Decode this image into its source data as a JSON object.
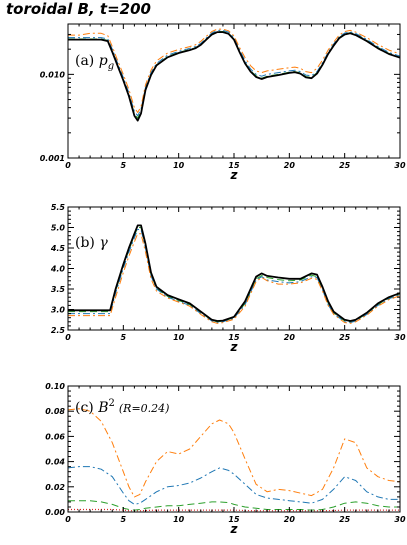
{
  "figure": {
    "title": "toroidal B, t=200"
  },
  "chart_data": [
    {
      "type": "line",
      "label": "(a) p_g",
      "label_prefix": "(a)",
      "label_symbol": "p",
      "label_sub": "g",
      "xlabel": "z",
      "xlim": [
        0,
        30
      ],
      "ylim": [
        0.001,
        0.04
      ],
      "log_y": true,
      "xticks": [
        0,
        5,
        10,
        15,
        20,
        25,
        30
      ],
      "yticks": [
        0.001,
        0.01
      ],
      "ytick_labels": [
        "0.001",
        "0.010"
      ],
      "x": [
        0,
        1,
        2,
        3,
        3.6,
        4,
        4.5,
        5,
        5.5,
        6,
        6.3,
        6.6,
        7,
        7.5,
        8,
        9,
        10,
        11,
        11.5,
        12,
        12.5,
        13,
        13.5,
        14,
        14.5,
        15,
        15.5,
        16,
        16.5,
        17,
        17.5,
        18,
        19,
        20,
        20.5,
        21,
        21.5,
        22,
        22.5,
        23,
        23.5,
        24,
        24.5,
        25,
        25.5,
        26,
        27,
        28,
        29,
        30
      ],
      "series": [
        {
          "color": "#000000",
          "dash": "solid",
          "width": 1.8,
          "values": [
            0.026,
            0.026,
            0.026,
            0.026,
            0.025,
            0.0185,
            0.0125,
            0.0085,
            0.0055,
            0.0032,
            0.0028,
            0.0034,
            0.0065,
            0.0098,
            0.0128,
            0.016,
            0.018,
            0.0195,
            0.0205,
            0.0225,
            0.026,
            0.03,
            0.032,
            0.032,
            0.0305,
            0.026,
            0.0185,
            0.0135,
            0.0108,
            0.0093,
            0.0088,
            0.0093,
            0.0098,
            0.0104,
            0.0106,
            0.0102,
            0.0092,
            0.009,
            0.0102,
            0.013,
            0.0175,
            0.022,
            0.027,
            0.03,
            0.031,
            0.0295,
            0.025,
            0.0205,
            0.0175,
            0.0158
          ]
        },
        {
          "color": "#2ca02c",
          "dash": "7,4",
          "width": 1,
          "values": [
            0.0265,
            0.0265,
            0.0265,
            0.0265,
            0.0255,
            0.019,
            0.0128,
            0.0087,
            0.0057,
            0.0034,
            0.003,
            0.0036,
            0.0067,
            0.01,
            0.013,
            0.0163,
            0.0183,
            0.0198,
            0.0208,
            0.0228,
            0.0265,
            0.0305,
            0.0325,
            0.0325,
            0.031,
            0.0265,
            0.019,
            0.0138,
            0.011,
            0.0096,
            0.009,
            0.0095,
            0.01,
            0.0106,
            0.0108,
            0.0104,
            0.0094,
            0.0092,
            0.0105,
            0.0133,
            0.0178,
            0.0225,
            0.0275,
            0.0305,
            0.0315,
            0.03,
            0.0255,
            0.021,
            0.0178,
            0.016
          ]
        },
        {
          "color": "#1f77b4",
          "dash": "7,3,2,3",
          "width": 1,
          "values": [
            0.0275,
            0.0275,
            0.0275,
            0.0275,
            0.0265,
            0.02,
            0.0135,
            0.0092,
            0.006,
            0.0036,
            0.0032,
            0.0038,
            0.007,
            0.0105,
            0.0135,
            0.017,
            0.0188,
            0.0205,
            0.0215,
            0.0235,
            0.0272,
            0.0312,
            0.0335,
            0.0335,
            0.032,
            0.0275,
            0.0198,
            0.0145,
            0.0116,
            0.01,
            0.0095,
            0.01,
            0.0105,
            0.011,
            0.0112,
            0.0108,
            0.0098,
            0.0096,
            0.0108,
            0.0137,
            0.0183,
            0.023,
            0.0282,
            0.0312,
            0.0322,
            0.0308,
            0.0262,
            0.0215,
            0.0183,
            0.0165
          ]
        },
        {
          "color": "#ff7f0e",
          "dash": "7,3,2,3",
          "width": 1,
          "values": [
            0.0295,
            0.0295,
            0.031,
            0.031,
            0.029,
            0.0215,
            0.0145,
            0.01,
            0.0066,
            0.004,
            0.0035,
            0.0041,
            0.0075,
            0.0112,
            0.0145,
            0.018,
            0.0198,
            0.0215,
            0.0225,
            0.0248,
            0.0285,
            0.0325,
            0.0348,
            0.0348,
            0.0332,
            0.0288,
            0.021,
            0.0158,
            0.0127,
            0.011,
            0.0105,
            0.011,
            0.0115,
            0.012,
            0.0122,
            0.0118,
            0.0108,
            0.0105,
            0.0118,
            0.0148,
            0.0195,
            0.0242,
            0.0295,
            0.0325,
            0.0335,
            0.032,
            0.0275,
            0.0228,
            0.0195,
            0.0175
          ]
        }
      ]
    },
    {
      "type": "line",
      "label": "(b) γ",
      "label_prefix": "(b)",
      "label_symbol": "γ",
      "xlabel": "z",
      "xlim": [
        0,
        30
      ],
      "ylim": [
        2.5,
        5.5
      ],
      "xticks": [
        0,
        5,
        10,
        15,
        20,
        25,
        30
      ],
      "yticks": [
        2.5,
        3.0,
        3.5,
        4.0,
        4.5,
        5.0,
        5.5
      ],
      "ytick_labels": [
        "2.5",
        "3.0",
        "3.5",
        "4.0",
        "4.5",
        "5.0",
        "5.5"
      ],
      "x": [
        0,
        1,
        2,
        3,
        3.8,
        4.3,
        5,
        5.5,
        6,
        6.3,
        6.6,
        7,
        7.5,
        8,
        9,
        10,
        11,
        12,
        13,
        13.5,
        14,
        15,
        16,
        17,
        17.5,
        18,
        19,
        20,
        21,
        22,
        22.5,
        23,
        23.5,
        24,
        25,
        25.5,
        26,
        27,
        28,
        29,
        30
      ],
      "series": [
        {
          "color": "#000000",
          "dash": "solid",
          "width": 1.8,
          "values": [
            2.98,
            2.98,
            2.98,
            2.98,
            2.98,
            3.5,
            4.1,
            4.5,
            4.85,
            5.05,
            5.05,
            4.6,
            3.9,
            3.55,
            3.35,
            3.25,
            3.15,
            2.95,
            2.75,
            2.72,
            2.73,
            2.82,
            3.2,
            3.8,
            3.88,
            3.82,
            3.78,
            3.75,
            3.75,
            3.88,
            3.85,
            3.55,
            3.2,
            2.95,
            2.75,
            2.72,
            2.75,
            2.92,
            3.15,
            3.3,
            3.4
          ]
        },
        {
          "color": "#2ca02c",
          "dash": "7,4",
          "width": 1,
          "values": [
            2.95,
            2.95,
            2.95,
            2.95,
            2.95,
            3.45,
            4.05,
            4.45,
            4.8,
            5.0,
            5.0,
            4.55,
            3.85,
            3.52,
            3.32,
            3.22,
            3.12,
            2.93,
            2.73,
            2.7,
            2.71,
            2.8,
            3.15,
            3.75,
            3.83,
            3.78,
            3.73,
            3.7,
            3.72,
            3.84,
            3.8,
            3.5,
            3.16,
            2.92,
            2.72,
            2.7,
            2.73,
            2.9,
            3.12,
            3.28,
            3.38
          ]
        },
        {
          "color": "#1f77b4",
          "dash": "7,3,2,3",
          "width": 1,
          "values": [
            2.9,
            2.9,
            2.9,
            2.9,
            2.9,
            3.4,
            4.0,
            4.4,
            4.75,
            4.95,
            4.95,
            4.5,
            3.82,
            3.5,
            3.3,
            3.2,
            3.1,
            2.9,
            2.72,
            2.68,
            2.7,
            2.79,
            3.12,
            3.72,
            3.8,
            3.72,
            3.68,
            3.65,
            3.68,
            3.8,
            3.78,
            3.48,
            3.12,
            2.9,
            2.7,
            2.68,
            2.72,
            2.88,
            3.1,
            3.26,
            3.36
          ]
        },
        {
          "color": "#ff7f0e",
          "dash": "7,3,2,3",
          "width": 1,
          "values": [
            2.85,
            2.85,
            2.85,
            2.85,
            2.85,
            3.3,
            3.9,
            4.3,
            4.65,
            4.85,
            4.85,
            4.4,
            3.75,
            3.45,
            3.28,
            3.18,
            3.08,
            2.88,
            2.7,
            2.66,
            2.68,
            2.76,
            3.08,
            3.68,
            3.78,
            3.7,
            3.62,
            3.62,
            3.65,
            3.76,
            3.74,
            3.45,
            3.1,
            2.88,
            2.68,
            2.66,
            2.7,
            2.86,
            3.08,
            3.24,
            3.34
          ]
        }
      ]
    },
    {
      "type": "line",
      "label": "(c) B^2 (R=0.24)",
      "label_prefix": "(c)",
      "label_symbol": "B",
      "label_sup": "2",
      "note": "(R=0.24)",
      "xlabel": "z",
      "xlim": [
        0,
        30
      ],
      "ylim": [
        0.0,
        0.1
      ],
      "xticks": [
        0,
        5,
        10,
        15,
        20,
        25,
        30
      ],
      "yticks": [
        0.0,
        0.02,
        0.04,
        0.06,
        0.08,
        0.1
      ],
      "ytick_labels": [
        "0.00",
        "0.02",
        "0.04",
        "0.06",
        "0.08",
        "0.10"
      ],
      "x": [
        0,
        1,
        2,
        3,
        4,
        5,
        5.5,
        6,
        6.5,
        7,
        8,
        9,
        10,
        11,
        12,
        13,
        13.7,
        14.5,
        15,
        16,
        17,
        18,
        19,
        20,
        21,
        22,
        23,
        24,
        25,
        26,
        27,
        28,
        29,
        30
      ],
      "series": [
        {
          "color": "#d62728",
          "dash": "1,2",
          "width": 1.2,
          "values": [
            0.002,
            0.002,
            0.002,
            0.002,
            0.002,
            0.0015,
            0.001,
            0.001,
            0.001,
            0.0012,
            0.0015,
            0.0015,
            0.0015,
            0.0015,
            0.0015,
            0.0015,
            0.0015,
            0.0015,
            0.0015,
            0.0012,
            0.001,
            0.001,
            0.001,
            0.001,
            0.001,
            0.001,
            0.001,
            0.0012,
            0.0015,
            0.0015,
            0.0015,
            0.0015,
            0.0015,
            0.0015
          ]
        },
        {
          "color": "#2ca02c",
          "dash": "7,4",
          "width": 1,
          "values": [
            0.009,
            0.009,
            0.009,
            0.008,
            0.006,
            0.003,
            0.002,
            0.0015,
            0.002,
            0.003,
            0.004,
            0.005,
            0.005,
            0.006,
            0.007,
            0.008,
            0.008,
            0.0075,
            0.006,
            0.004,
            0.003,
            0.002,
            0.002,
            0.002,
            0.002,
            0.0015,
            0.002,
            0.004,
            0.007,
            0.008,
            0.007,
            0.005,
            0.004,
            0.004
          ]
        },
        {
          "color": "#1f77b4",
          "dash": "7,3,2,3",
          "width": 1,
          "values": [
            0.035,
            0.036,
            0.036,
            0.034,
            0.028,
            0.015,
            0.009,
            0.006,
            0.007,
            0.01,
            0.016,
            0.02,
            0.021,
            0.023,
            0.027,
            0.032,
            0.035,
            0.033,
            0.03,
            0.022,
            0.014,
            0.011,
            0.01,
            0.009,
            0.008,
            0.007,
            0.01,
            0.018,
            0.028,
            0.025,
            0.016,
            0.012,
            0.01,
            0.01
          ]
        },
        {
          "color": "#ff7f0e",
          "dash": "7,3,2,3",
          "width": 1,
          "values": [
            0.081,
            0.082,
            0.08,
            0.072,
            0.055,
            0.032,
            0.02,
            0.012,
            0.014,
            0.024,
            0.04,
            0.048,
            0.046,
            0.05,
            0.06,
            0.07,
            0.073,
            0.07,
            0.063,
            0.042,
            0.022,
            0.016,
            0.018,
            0.017,
            0.015,
            0.013,
            0.018,
            0.035,
            0.058,
            0.055,
            0.035,
            0.028,
            0.025,
            0.024
          ]
        }
      ]
    }
  ]
}
